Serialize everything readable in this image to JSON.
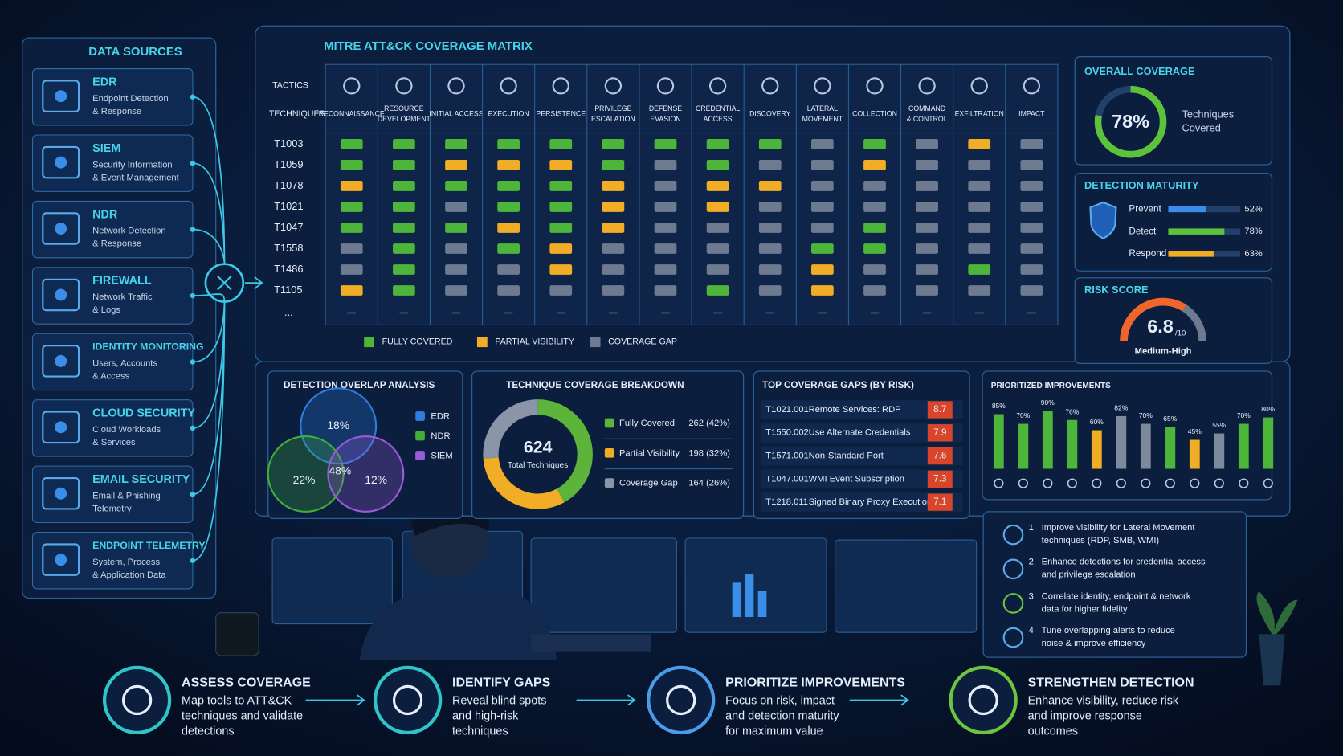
{
  "data_sources": {
    "title": "DATA SOURCES",
    "items": [
      {
        "name": "EDR",
        "lines": [
          "Endpoint Detection",
          "& Response"
        ]
      },
      {
        "name": "SIEM",
        "lines": [
          "Security Information",
          "& Event Management"
        ]
      },
      {
        "name": "NDR",
        "lines": [
          "Network Detection",
          "& Response"
        ]
      },
      {
        "name": "FIREWALL",
        "lines": [
          "Network Traffic",
          "& Logs"
        ]
      },
      {
        "name": "IDENTITY MONITORING",
        "lines": [
          "Users, Accounts",
          "& Access"
        ]
      },
      {
        "name": "CLOUD SECURITY",
        "lines": [
          "Cloud Workloads",
          "& Services"
        ]
      },
      {
        "name": "EMAIL SECURITY",
        "lines": [
          "Email & Phishing",
          "Telemetry"
        ]
      },
      {
        "name": "ENDPOINT TELEMETRY",
        "lines": [
          "System, Process",
          "& Application Data"
        ]
      }
    ]
  },
  "matrix": {
    "title": "MITRE ATT&CK COVERAGE MATRIX",
    "tactics_label": "TACTICS",
    "techniques_label": "TECHNIQUES",
    "tactics": [
      [
        "RECONNAISSANCE"
      ],
      [
        "RESOURCE",
        "DEVELOPMENT"
      ],
      [
        "INITIAL ACCESS"
      ],
      [
        "EXECUTION"
      ],
      [
        "PERSISTENCE"
      ],
      [
        "PRIVILEGE",
        "ESCALATION"
      ],
      [
        "DEFENSE",
        "EVASION"
      ],
      [
        "CREDENTIAL",
        "ACCESS"
      ],
      [
        "DISCOVERY"
      ],
      [
        "LATERAL",
        "MOVEMENT"
      ],
      [
        "COLLECTION"
      ],
      [
        "COMMAND",
        "& CONTROL"
      ],
      [
        "EXFILTRATION"
      ],
      [
        "IMPACT"
      ]
    ],
    "rows": [
      {
        "technique": "T1003",
        "cells": [
          0,
          0,
          0,
          0,
          0,
          0,
          0,
          0,
          0,
          2,
          0,
          2,
          1,
          2
        ]
      },
      {
        "technique": "T1059",
        "cells": [
          0,
          0,
          1,
          1,
          1,
          0,
          2,
          0,
          2,
          2,
          1,
          2,
          2,
          2
        ]
      },
      {
        "technique": "T1078",
        "cells": [
          1,
          0,
          0,
          0,
          0,
          1,
          2,
          1,
          1,
          2,
          2,
          2,
          2,
          2
        ]
      },
      {
        "technique": "T1021",
        "cells": [
          0,
          0,
          2,
          0,
          0,
          1,
          2,
          1,
          2,
          2,
          2,
          2,
          2,
          2
        ]
      },
      {
        "technique": "T1047",
        "cells": [
          0,
          0,
          0,
          1,
          0,
          1,
          2,
          2,
          2,
          2,
          0,
          2,
          2,
          2
        ]
      },
      {
        "technique": "T1558",
        "cells": [
          2,
          0,
          2,
          0,
          1,
          2,
          2,
          2,
          2,
          0,
          0,
          2,
          2,
          2
        ]
      },
      {
        "technique": "T1486",
        "cells": [
          2,
          0,
          2,
          2,
          1,
          2,
          2,
          2,
          2,
          1,
          2,
          2,
          0,
          2
        ]
      },
      {
        "technique": "T1105",
        "cells": [
          1,
          0,
          2,
          2,
          2,
          2,
          2,
          0,
          2,
          1,
          2,
          2,
          2,
          2
        ]
      }
    ],
    "more": "...",
    "legend": [
      {
        "label": "FULLY COVERED",
        "color": "#4cb53a"
      },
      {
        "label": "PARTIAL VISIBILITY",
        "color": "#f0ad25"
      },
      {
        "label": "COVERAGE GAP",
        "color": "#6d7a90"
      }
    ]
  },
  "overall_coverage": {
    "title": "OVERALL COVERAGE",
    "value": 78,
    "value_label": "78%",
    "caption": [
      "Techniques",
      "Covered"
    ],
    "color": "#5cc23c"
  },
  "detection_maturity": {
    "title": "DETECTION MATURITY",
    "items": [
      {
        "name": "Prevent",
        "value": 52,
        "value_label": "52%",
        "color": "#3b8ee8"
      },
      {
        "name": "Detect",
        "value": 78,
        "value_label": "78%",
        "color": "#5cc23c"
      },
      {
        "name": "Respond",
        "value": 63,
        "value_label": "63%",
        "color": "#f0ad25"
      }
    ]
  },
  "risk_score": {
    "title": "RISK SCORE",
    "value": 6.8,
    "max": {
      "value": 10,
      "label": "/10"
    },
    "level": "Medium-High"
  },
  "detection_overlap": {
    "title": "DETECTION OVERLAP ANALYSIS",
    "legend": [
      {
        "name": "EDR",
        "color": "#2f7be0"
      },
      {
        "name": "NDR",
        "color": "#3fae3a"
      },
      {
        "name": "SIEM",
        "color": "#9b5ad8"
      }
    ],
    "regions": [
      {
        "value": 18,
        "label": "18%"
      },
      {
        "value": 22,
        "label": "22%"
      },
      {
        "value": 48,
        "label": "48%"
      },
      {
        "value": 12,
        "label": "12%"
      }
    ]
  },
  "coverage_breakdown": {
    "title": "TECHNIQUE COVERAGE BREAKDOWN",
    "total": 624,
    "total_label": "Total Techniques",
    "segments": [
      {
        "name": "Fully Covered",
        "value": 262,
        "value_label": "262 (42%)",
        "color": "#5cb53a"
      },
      {
        "name": "Partial Visibility",
        "value": 198,
        "value_label": "198 (32%)",
        "color": "#f0ad25"
      },
      {
        "name": "Coverage Gap",
        "value": 164,
        "value_label": "164 (26%)",
        "color": "#8a96a8"
      }
    ]
  },
  "coverage_gaps": {
    "title": "TOP COVERAGE GAPS (BY RISK)",
    "items": [
      {
        "technique": "T1021.001",
        "name": "Remote Services: RDP",
        "score": 8.7
      },
      {
        "technique": "T1550.002",
        "name": "Use Alternate Credentials",
        "score": 7.9
      },
      {
        "technique": "T1571.001",
        "name": "Non-Standard Port",
        "score": 7.6
      },
      {
        "technique": "T1047.001",
        "name": "WMI Event Subscription",
        "score": 7.3
      },
      {
        "technique": "T1218.011",
        "name": "Signed Binary Proxy Execution",
        "score": 7.1
      }
    ]
  },
  "prioritized_improvements": {
    "title": "PRIORITIZED IMPROVEMENTS",
    "values": [
      85,
      70,
      90,
      76,
      60,
      82,
      70,
      65,
      45,
      55,
      70,
      80
    ],
    "value_labels": [
      "85%",
      "70%",
      "90%",
      "76%",
      "60%",
      "82%",
      "70%",
      "65%",
      "45%",
      "55%",
      "70%",
      "80%"
    ],
    "colors": [
      "#4cb53a",
      "#4cb53a",
      "#4cb53a",
      "#4cb53a",
      "#f0ad25",
      "#7d8a9c",
      "#7d8a9c",
      "#4cb53a",
      "#f0ad25",
      "#7d8a9c",
      "#4cb53a",
      "#4cb53a"
    ]
  },
  "recommendations": [
    {
      "number": 1,
      "lines": [
        "Improve visibility for Lateral Movement",
        "techniques (RDP, SMB, WMI)"
      ]
    },
    {
      "number": 2,
      "lines": [
        "Enhance detections for credential access",
        "and privilege escalation"
      ]
    },
    {
      "number": 3,
      "lines": [
        "Correlate identity, endpoint & network",
        "data for higher fidelity"
      ]
    },
    {
      "number": 4,
      "lines": [
        "Tune overlapping alerts to reduce",
        "noise & improve efficiency"
      ]
    }
  ],
  "steps": [
    {
      "title": "ASSESS COVERAGE",
      "lines": [
        "Map tools to ATT&CK",
        "techniques and validate",
        "detections"
      ],
      "color": "#2fc4c8"
    },
    {
      "title": "IDENTIFY GAPS",
      "lines": [
        "Reveal blind spots",
        "and high-risk",
        "techniques"
      ],
      "color": "#2fc4c8"
    },
    {
      "title": "PRIORITIZE IMPROVEMENTS",
      "lines": [
        "Focus on risk, impact",
        "and detection maturity",
        "for maximum value"
      ],
      "color": "#4a9be8"
    },
    {
      "title": "STRENGTHEN DETECTION",
      "lines": [
        "Enhance visibility, reduce risk",
        "and improve response",
        "outcomes"
      ],
      "color": "#6cc53c"
    }
  ]
}
